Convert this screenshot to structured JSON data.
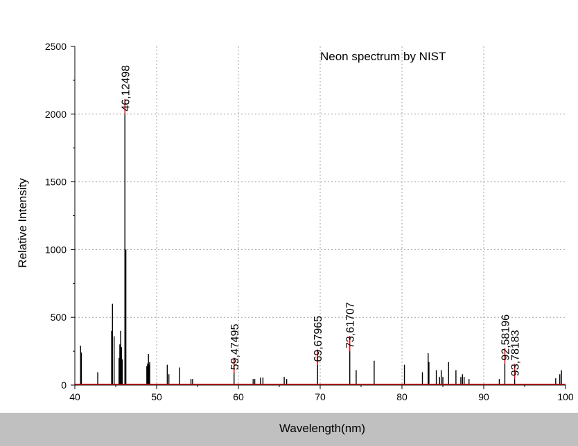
{
  "chart_data": {
    "type": "bar",
    "title": "Neon spectrum by NIST",
    "xlabel": "Wavelength(nm)",
    "ylabel": "Relative Intensity",
    "xlim": [
      40,
      100
    ],
    "ylim": [
      0,
      2500
    ],
    "xticks": [
      "40",
      "50",
      "60",
      "70",
      "80",
      "90",
      "100"
    ],
    "yticks": [
      "0",
      "500",
      "1000",
      "1500",
      "2000",
      "2500"
    ],
    "grid": true,
    "colors": {
      "lines": "#000000",
      "highlight": "#ff0000",
      "baseline": "#ff0000",
      "grid": "#a0a0a0"
    },
    "lines": [
      {
        "x": 40.7,
        "y": 290
      },
      {
        "x": 40.8,
        "y": 240
      },
      {
        "x": 42.8,
        "y": 95
      },
      {
        "x": 44.5,
        "y": 400
      },
      {
        "x": 44.6,
        "y": 600
      },
      {
        "x": 44.8,
        "y": 360
      },
      {
        "x": 45.4,
        "y": 200
      },
      {
        "x": 45.5,
        "y": 300
      },
      {
        "x": 45.6,
        "y": 400
      },
      {
        "x": 45.7,
        "y": 280
      },
      {
        "x": 45.8,
        "y": 190
      },
      {
        "x": 46.12,
        "y": 2000
      },
      {
        "x": 46.24,
        "y": 1000
      },
      {
        "x": 48.8,
        "y": 140
      },
      {
        "x": 48.9,
        "y": 160
      },
      {
        "x": 49.0,
        "y": 230
      },
      {
        "x": 49.05,
        "y": 150
      },
      {
        "x": 49.15,
        "y": 170
      },
      {
        "x": 51.3,
        "y": 150
      },
      {
        "x": 51.5,
        "y": 80
      },
      {
        "x": 52.8,
        "y": 130
      },
      {
        "x": 54.2,
        "y": 45
      },
      {
        "x": 54.4,
        "y": 45
      },
      {
        "x": 59.47,
        "y": 90
      },
      {
        "x": 61.8,
        "y": 45
      },
      {
        "x": 62.0,
        "y": 45
      },
      {
        "x": 62.7,
        "y": 55
      },
      {
        "x": 63.0,
        "y": 55
      },
      {
        "x": 65.6,
        "y": 60
      },
      {
        "x": 65.9,
        "y": 45
      },
      {
        "x": 69.68,
        "y": 150
      },
      {
        "x": 73.62,
        "y": 250
      },
      {
        "x": 74.4,
        "y": 110
      },
      {
        "x": 76.6,
        "y": 180
      },
      {
        "x": 80.3,
        "y": 150
      },
      {
        "x": 82.5,
        "y": 95
      },
      {
        "x": 83.2,
        "y": 235
      },
      {
        "x": 83.3,
        "y": 170
      },
      {
        "x": 84.2,
        "y": 110
      },
      {
        "x": 84.6,
        "y": 60
      },
      {
        "x": 84.8,
        "y": 110
      },
      {
        "x": 85.0,
        "y": 60
      },
      {
        "x": 85.7,
        "y": 170
      },
      {
        "x": 86.6,
        "y": 110
      },
      {
        "x": 87.2,
        "y": 60
      },
      {
        "x": 87.4,
        "y": 80
      },
      {
        "x": 87.6,
        "y": 60
      },
      {
        "x": 88.2,
        "y": 45
      },
      {
        "x": 91.9,
        "y": 45
      },
      {
        "x": 92.58,
        "y": 160
      },
      {
        "x": 93.78,
        "y": 45
      },
      {
        "x": 98.8,
        "y": 50
      },
      {
        "x": 99.3,
        "y": 80
      },
      {
        "x": 99.5,
        "y": 110
      }
    ],
    "annotations": [
      {
        "x": 46.12498,
        "y": 2000,
        "label": "46,12498"
      },
      {
        "x": 59.47495,
        "y": 90,
        "label": "59,47495"
      },
      {
        "x": 69.67965,
        "y": 150,
        "label": "69,67965"
      },
      {
        "x": 73.61707,
        "y": 250,
        "label": "73,61707"
      },
      {
        "x": 92.58196,
        "y": 160,
        "label": "92,58196"
      },
      {
        "x": 93.78183,
        "y": 45,
        "label": "93,78183"
      }
    ]
  }
}
